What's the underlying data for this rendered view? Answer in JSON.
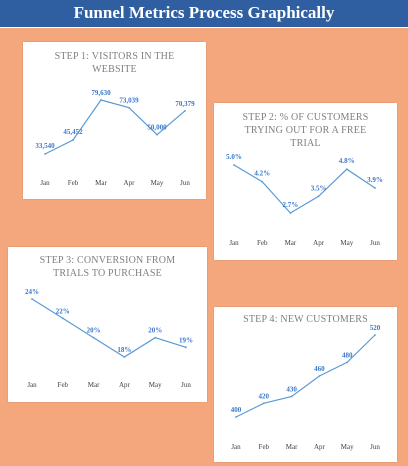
{
  "page": {
    "banner_title": "Funnel Metrics Process Graphically",
    "background_color": "#f4a77c",
    "banner_color": "#2f5fa1",
    "line_color": "#5b9bd5"
  },
  "chart_data": [
    {
      "type": "line",
      "title_lines": [
        "STEP 1: VISITORS IN THE",
        "WEBSITE"
      ],
      "categories": [
        "Jan",
        "Feb",
        "Mar",
        "Apr",
        "May",
        "Jun"
      ],
      "values": [
        33540,
        45452,
        79630,
        73039,
        50000,
        70379
      ],
      "value_labels": [
        "33,540",
        "45,452",
        "79,630",
        "73,039",
        "50,000",
        "70,379"
      ],
      "ylim": [
        0,
        90000
      ]
    },
    {
      "type": "line",
      "title_lines": [
        "STEP 2: % OF CUSTOMERS",
        "TRYING OUT FOR A FREE",
        "TRIAL"
      ],
      "categories": [
        "Jan",
        "Feb",
        "Mar",
        "Apr",
        "May",
        "Jun"
      ],
      "values": [
        5.0,
        4.2,
        2.7,
        3.5,
        4.8,
        3.9
      ],
      "value_labels": [
        "5.0%",
        "4.2%",
        "2.7%",
        "3.5%",
        "4.8%",
        "3.9%"
      ],
      "ylim": [
        0,
        6
      ]
    },
    {
      "type": "line",
      "title_lines": [
        "STEP 3: CONVERSION FROM",
        "TRIALS TO PURCHASE"
      ],
      "categories": [
        "Jan",
        "Feb",
        "Mar",
        "Apr",
        "May",
        "Jun"
      ],
      "values": [
        24,
        22,
        20,
        18,
        20,
        19
      ],
      "value_labels": [
        "24%",
        "22%",
        "20%",
        "18%",
        "20%",
        "19%"
      ],
      "ylim": [
        0,
        30
      ]
    },
    {
      "type": "line",
      "title_lines": [
        "STEP 4: NEW CUSTOMERS"
      ],
      "categories": [
        "Jan",
        "Feb",
        "Mar",
        "Apr",
        "May",
        "Jun"
      ],
      "values": [
        400,
        420,
        430,
        460,
        480,
        520
      ],
      "value_labels": [
        "400",
        "420",
        "430",
        "460",
        "480",
        "520"
      ],
      "ylim": [
        0,
        1000
      ]
    }
  ]
}
